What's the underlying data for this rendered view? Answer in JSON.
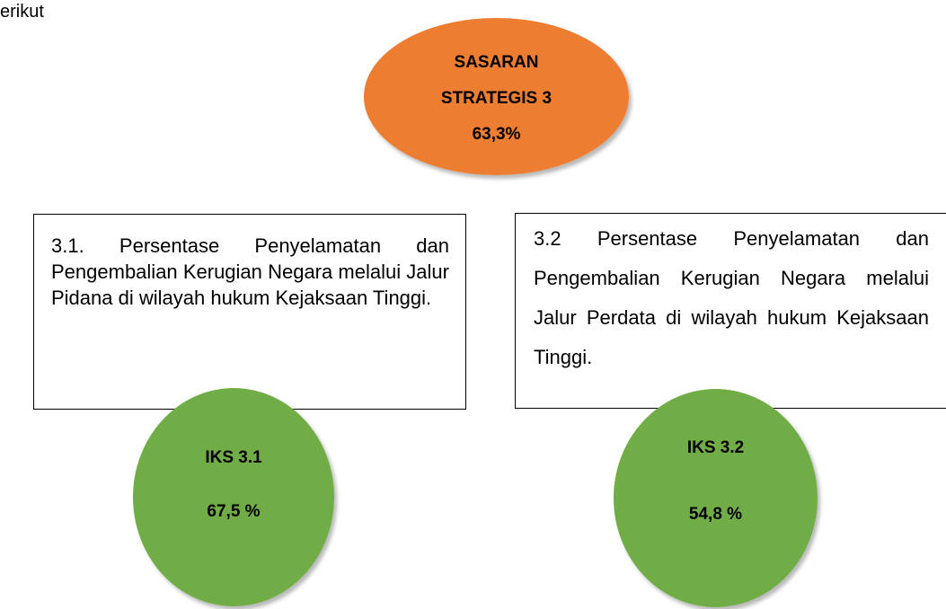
{
  "intro": "erikut",
  "goal": {
    "lines": [
      "SASARAN",
      "STRATEGIS 3"
    ],
    "value": "63,3%"
  },
  "indicators": [
    {
      "description": "3.1. Persentase Penyelamatan dan Pengembalian Kerugian Negara melalui Jalur Pidana di wilayah hukum Kejaksaan Tinggi.",
      "label": "IKS 3.1",
      "value": "67,5 %"
    },
    {
      "description": "3.2 Persentase Penyelamatan dan Pengembalian Kerugian Negara melalui Jalur Perdata di wilayah hukum Kejaksaan Tinggi.",
      "label": "IKS 3.2",
      "value": "54,8 %"
    }
  ]
}
